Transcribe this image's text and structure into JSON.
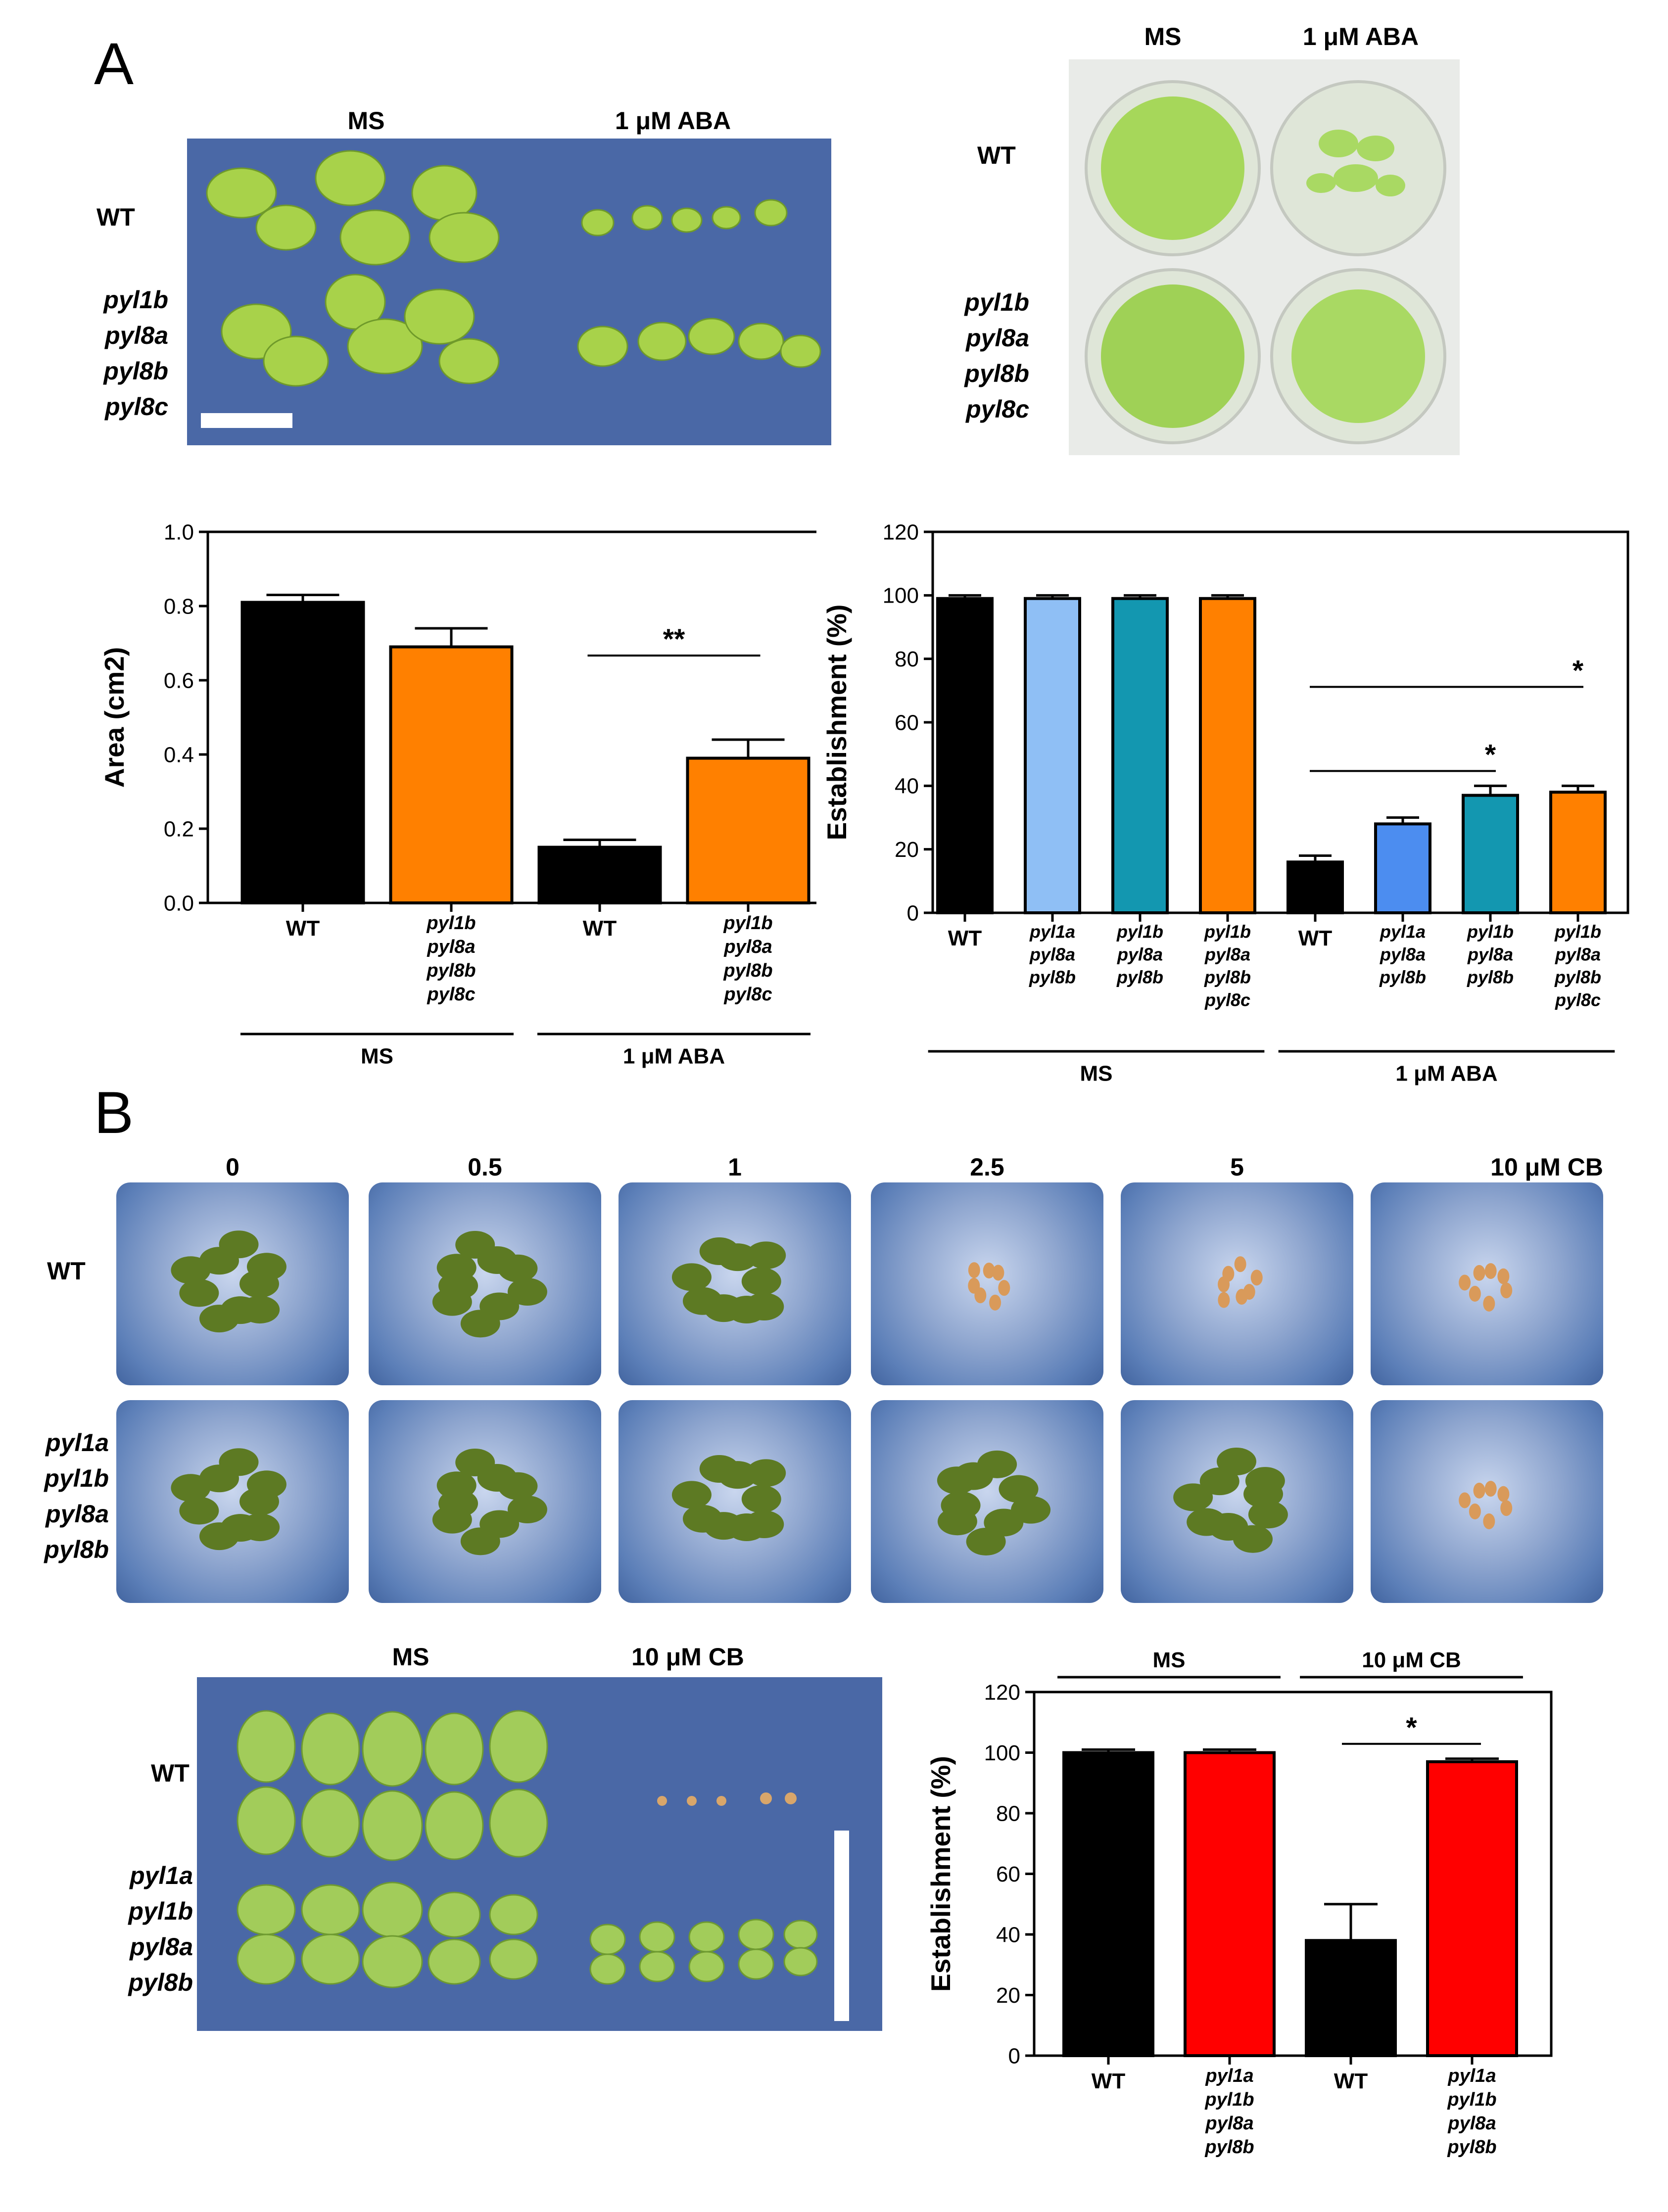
{
  "panel_a": {
    "letter": "A",
    "photo_left": {
      "col_labels": [
        "MS",
        "1 μM ABA"
      ],
      "row_wt": "WT",
      "row_mutant": [
        "pyl1b",
        "pyl8a",
        "pyl8b",
        "pyl8c"
      ]
    },
    "photo_right": {
      "col_labels": [
        "MS",
        "1 μM ABA"
      ],
      "row_wt": "WT",
      "row_mutant": [
        "pyl1b",
        "pyl8a",
        "pyl8b",
        "pyl8c"
      ]
    }
  },
  "panel_b": {
    "letter": "B",
    "dose_labels": [
      "0",
      "0.5",
      "1",
      "2.5",
      "5",
      "10  μM CB"
    ],
    "row_wt": "WT",
    "row_mutant": [
      "pyl1a",
      "pyl1b",
      "pyl8a",
      "pyl8b"
    ],
    "photo_bottom": {
      "col_labels": [
        "MS",
        "10 μM CB"
      ],
      "row_wt": "WT",
      "row_mutant": [
        "pyl1a",
        "pyl1b",
        "pyl8a",
        "pyl8b"
      ]
    }
  },
  "colors": {
    "black": "#000000",
    "orange": "#ff8000",
    "light_blue": "#8fbff5",
    "mid_blue": "#4c8df0",
    "teal": "#1397b0",
    "red": "#ff0000"
  },
  "chart_data": [
    {
      "id": "chart1",
      "type": "bar",
      "ylabel": "Area (cm2)",
      "ylim": [
        0,
        1.0
      ],
      "yticks": [
        "0.0",
        "0.2",
        "0.4",
        "0.6",
        "0.8",
        "1.0"
      ],
      "categories": [
        [
          "WT"
        ],
        [
          "pyl1b",
          "pyl8a",
          "pyl8b",
          "pyl8c"
        ],
        [
          "WT"
        ],
        [
          "pyl1b",
          "pyl8a",
          "pyl8b",
          "pyl8c"
        ]
      ],
      "values": [
        0.81,
        0.69,
        0.15,
        0.39
      ],
      "errors": [
        0.02,
        0.05,
        0.02,
        0.05
      ],
      "colors": [
        "black",
        "orange",
        "black",
        "orange"
      ],
      "groups": [
        {
          "label": "MS",
          "from": 0,
          "to": 1
        },
        {
          "label": "1 μM ABA",
          "from": 2,
          "to": 3
        }
      ],
      "significance": [
        {
          "from": 2,
          "to": 3,
          "label": "**"
        }
      ]
    },
    {
      "id": "chart2",
      "type": "bar",
      "ylabel": "Establishment (%)",
      "ylim": [
        0,
        120
      ],
      "yticks": [
        "0",
        "20",
        "40",
        "60",
        "80",
        "100",
        "120"
      ],
      "categories": [
        [
          "WT"
        ],
        [
          "pyl1a",
          "pyl8a",
          "pyl8b"
        ],
        [
          "pyl1b",
          "pyl8a",
          "pyl8b"
        ],
        [
          "pyl1b",
          "pyl8a",
          "pyl8b",
          "pyl8c"
        ],
        [
          "WT"
        ],
        [
          "pyl1a",
          "pyl8a",
          "pyl8b"
        ],
        [
          "pyl1b",
          "pyl8a",
          "pyl8b"
        ],
        [
          "pyl1b",
          "pyl8a",
          "pyl8b",
          "pyl8c"
        ]
      ],
      "values": [
        99,
        99,
        99,
        99,
        16,
        28,
        37,
        38
      ],
      "errors": [
        1,
        1,
        1,
        1,
        2,
        2,
        3,
        2
      ],
      "colors": [
        "black",
        "light_blue",
        "teal",
        "orange",
        "black",
        "mid_blue",
        "teal",
        "orange"
      ],
      "groups": [
        {
          "label": "MS",
          "from": 0,
          "to": 3
        },
        {
          "label": "1 μM ABA",
          "from": 4,
          "to": 7
        }
      ],
      "significance": [
        {
          "from": 4,
          "to": 6,
          "label": "*"
        },
        {
          "from": 4,
          "to": 7,
          "label": "*"
        }
      ]
    },
    {
      "id": "chart3",
      "type": "bar",
      "ylabel": "Establishment (%)",
      "ylim": [
        0,
        120
      ],
      "yticks": [
        "0",
        "20",
        "40",
        "60",
        "80",
        "100",
        "120"
      ],
      "categories": [
        [
          "WT"
        ],
        [
          "pyl1a",
          "pyl1b",
          "pyl8a",
          "pyl8b"
        ],
        [
          "WT"
        ],
        [
          "pyl1a",
          "pyl1b",
          "pyl8a",
          "pyl8b"
        ]
      ],
      "values": [
        100,
        100,
        38,
        97
      ],
      "errors": [
        1,
        1,
        12,
        1
      ],
      "colors": [
        "black",
        "red",
        "black",
        "red"
      ],
      "top_groups": [
        {
          "label": "MS",
          "from": 0,
          "to": 1
        },
        {
          "label": "10 μM CB",
          "from": 2,
          "to": 3
        }
      ],
      "significance": [
        {
          "from": 2,
          "to": 3,
          "label": "*"
        }
      ]
    }
  ]
}
